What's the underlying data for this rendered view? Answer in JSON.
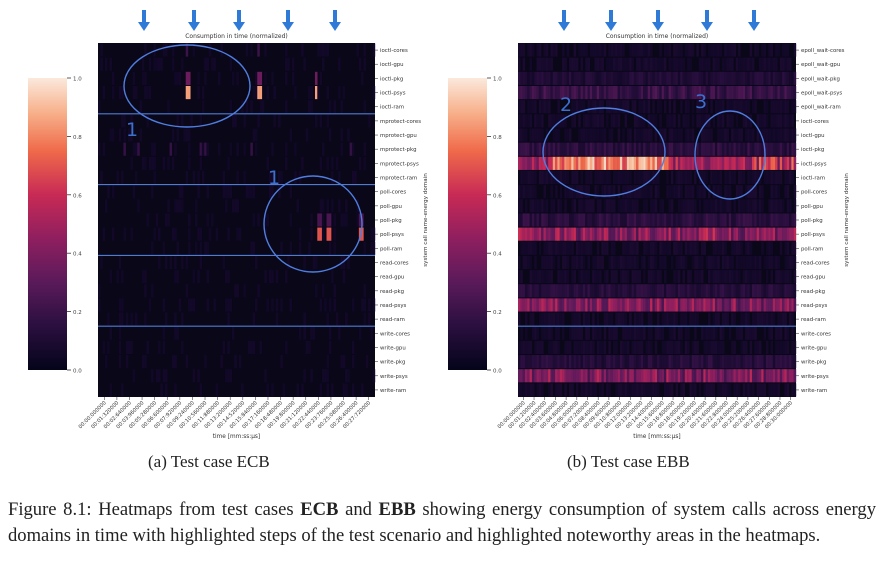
{
  "figure": {
    "panels": [
      {
        "id": "ecb",
        "subcaption": "(a) Test case ECB",
        "title": "Consumption in time (normalized)",
        "xlabel": "time [mm:ss:µs]",
        "ylabel": "system call name-energy domain",
        "rows": [
          "ioctl-cores",
          "ioctl-gpu",
          "ioctl-pkg",
          "ioctl-psys",
          "ioctl-ram",
          "mprotect-cores",
          "mprotect-gpu",
          "mprotect-pkg",
          "mprotect-psys",
          "mprotect-ram",
          "poll-cores",
          "poll-gpu",
          "poll-pkg",
          "poll-psys",
          "poll-ram",
          "read-cores",
          "read-gpu",
          "read-pkg",
          "read-psys",
          "read-ram",
          "write-cores",
          "write-gpu",
          "write-pkg",
          "write-psys",
          "write-ram"
        ],
        "xticks": [
          "00:00:000000",
          "00:01:320000",
          "00:02:640000",
          "00:03:960000",
          "00:05:280000",
          "00:06:600000",
          "00:07:920000",
          "00:09:240000",
          "00:10:560000",
          "00:11:880000",
          "00:13:200000",
          "00:14:520000",
          "00:15:840000",
          "00:17:160000",
          "00:18:480000",
          "00:19:800000",
          "00:21:120000",
          "00:22:440000",
          "00:23:760000",
          "00:25:080000",
          "00:26:400000",
          "00:27:720000"
        ],
        "colorbar_ticks": [
          "0.0",
          "0.2",
          "0.4",
          "0.6",
          "0.8",
          "1.0"
        ],
        "annotations": [
          "1",
          "1"
        ]
      },
      {
        "id": "ebb",
        "subcaption": "(b) Test case EBB",
        "title": "Consumption in time (normalized)",
        "xlabel": "time [mm:ss:µs]",
        "ylabel": "system call name-energy domain",
        "rows": [
          "epoll_wait-cores",
          "epoll_wait-gpu",
          "epoll_wait-pkg",
          "epoll_wait-psys",
          "epoll_wait-ram",
          "ioctl-cores",
          "ioctl-gpu",
          "ioctl-pkg",
          "ioctl-psys",
          "ioctl-ram",
          "poll-cores",
          "poll-gpu",
          "poll-pkg",
          "poll-psys",
          "poll-ram",
          "read-cores",
          "read-gpu",
          "read-pkg",
          "read-psys",
          "read-ram",
          "write-cores",
          "write-gpu",
          "write-pkg",
          "write-psys",
          "write-ram"
        ],
        "xticks": [
          "00:00:000000",
          "00:01:200000",
          "00:02:400000",
          "00:03:600000",
          "00:04:800000",
          "00:06:000000",
          "00:07:200000",
          "00:08:400000",
          "00:09:600000",
          "00:10:800000",
          "00:12:000000",
          "00:13:200000",
          "00:14:400000",
          "00:15:600000",
          "00:16:800000",
          "00:18:000000",
          "00:19:200000",
          "00:20:400000",
          "00:21:600000",
          "00:22:800000",
          "00:24:000000",
          "00:25:200000",
          "00:26:400000",
          "00:27:600000",
          "00:28:800000",
          "00:30:000000"
        ],
        "colorbar_ticks": [
          "0.0",
          "0.2",
          "0.4",
          "0.6",
          "0.8",
          "1.0"
        ],
        "annotations": [
          "2",
          "3"
        ]
      }
    ],
    "caption": {
      "prefix": "Figure 8.1:  Heatmaps from test cases ",
      "b1": "ECB",
      "mid": " and ",
      "b2": "EBB",
      "suffix": " showing energy consumption of system calls across energy domains in time with highlighted steps of the test scenario and highlighted noteworthy areas in the heatmaps."
    },
    "colors": {
      "arrow": "#2f7ad6",
      "annotation": "#3b6fd0",
      "background_cell": "#08061a"
    }
  }
}
